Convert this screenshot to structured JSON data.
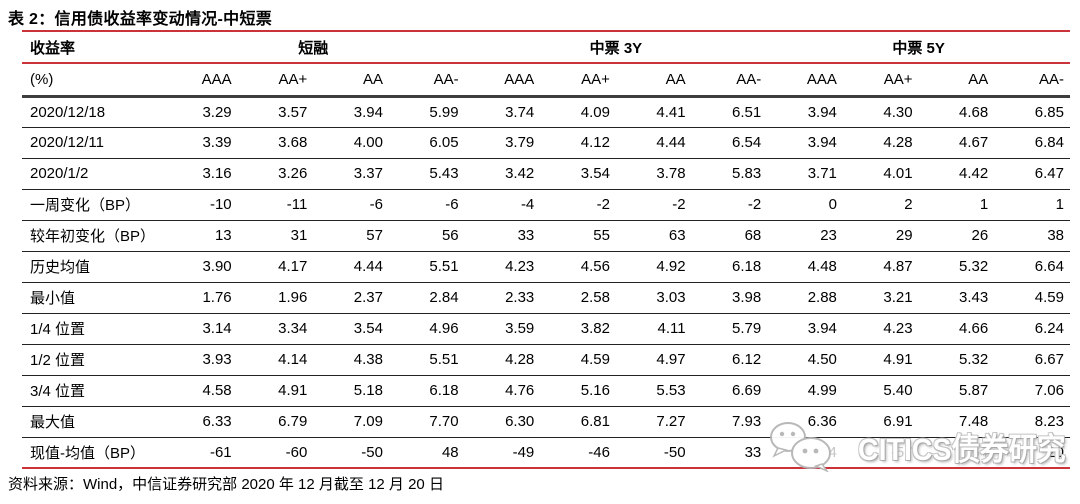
{
  "title": "表 2：信用债收益率变动情况-中短票",
  "source_note": "资料来源：Wind，中信证券研究部 2020 年 12 月截至 12 月 20 日",
  "watermark": {
    "text": "CITICS债券研究",
    "icon": "wechat-chat-bubbles"
  },
  "colors": {
    "accent_red": "#cb333b",
    "header_rule_dark": "#3d3d3d",
    "row_rule": "#222222",
    "washed_text": "#c6c6c6"
  },
  "table": {
    "corner_label": "收益率",
    "unit_label": "(%)",
    "groups": [
      {
        "label": "短融",
        "span": 4
      },
      {
        "label": "中票 3Y",
        "span": 4
      },
      {
        "label": "中票 5Y",
        "span": 4
      }
    ],
    "ratings": [
      "AAA",
      "AA+",
      "AA",
      "AA-",
      "AAA",
      "AA+",
      "AA",
      "AA-",
      "AAA",
      "AA+",
      "AA",
      "AA-"
    ],
    "rows": [
      {
        "label": "2020/12/18",
        "values": [
          "3.29",
          "3.57",
          "3.94",
          "5.99",
          "3.74",
          "4.09",
          "4.41",
          "6.51",
          "3.94",
          "4.30",
          "4.68",
          "6.85"
        ]
      },
      {
        "label": "2020/12/11",
        "values": [
          "3.39",
          "3.68",
          "4.00",
          "6.05",
          "3.79",
          "4.12",
          "4.44",
          "6.54",
          "3.94",
          "4.28",
          "4.67",
          "6.84"
        ]
      },
      {
        "label": "2020/1/2",
        "values": [
          "3.16",
          "3.26",
          "3.37",
          "5.43",
          "3.42",
          "3.54",
          "3.78",
          "5.83",
          "3.71",
          "4.01",
          "4.42",
          "6.47"
        ]
      },
      {
        "label": "一周变化（BP）",
        "values": [
          "-10",
          "-11",
          "-6",
          "-6",
          "-4",
          "-2",
          "-2",
          "-2",
          "0",
          "2",
          "1",
          "1"
        ]
      },
      {
        "label": "较年初变化（BP）",
        "values": [
          "13",
          "31",
          "57",
          "56",
          "33",
          "55",
          "63",
          "68",
          "23",
          "29",
          "26",
          "38"
        ]
      },
      {
        "label": "历史均值",
        "values": [
          "3.90",
          "4.17",
          "4.44",
          "5.51",
          "4.23",
          "4.56",
          "4.92",
          "6.18",
          "4.48",
          "4.87",
          "5.32",
          "6.64"
        ]
      },
      {
        "label": "最小值",
        "values": [
          "1.76",
          "1.96",
          "2.37",
          "2.84",
          "2.33",
          "2.58",
          "3.03",
          "3.98",
          "2.88",
          "3.21",
          "3.43",
          "4.59"
        ]
      },
      {
        "label": "1/4 位置",
        "values": [
          "3.14",
          "3.34",
          "3.54",
          "4.96",
          "3.59",
          "3.82",
          "4.11",
          "5.79",
          "3.94",
          "4.23",
          "4.66",
          "6.24"
        ]
      },
      {
        "label": "1/2 位置",
        "values": [
          "3.93",
          "4.14",
          "4.38",
          "5.51",
          "4.28",
          "4.59",
          "4.97",
          "6.12",
          "4.50",
          "4.91",
          "5.32",
          "6.67"
        ]
      },
      {
        "label": "3/4 位置",
        "values": [
          "4.58",
          "4.91",
          "5.18",
          "6.18",
          "4.76",
          "5.16",
          "5.53",
          "6.69",
          "4.99",
          "5.40",
          "5.87",
          "7.06"
        ]
      },
      {
        "label": "最大值",
        "values": [
          "6.33",
          "6.79",
          "7.09",
          "7.70",
          "6.30",
          "6.81",
          "7.27",
          "7.93",
          "6.36",
          "6.91",
          "7.48",
          "8.23"
        ]
      },
      {
        "label": "现值-均值（BP）",
        "values": [
          "-61",
          "-60",
          "-50",
          "48",
          "-49",
          "-46",
          "-50",
          "33",
          "-54",
          "-57",
          "-64",
          "20"
        ],
        "washed_indices": [
          8,
          9,
          10
        ]
      }
    ]
  }
}
